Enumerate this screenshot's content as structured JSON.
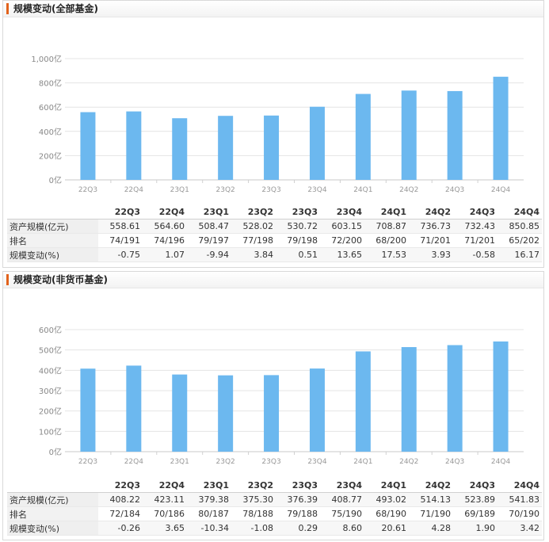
{
  "panels": [
    {
      "title": "规模变动(全部基金)",
      "table": {
        "columns": [
          "22Q3",
          "22Q4",
          "23Q1",
          "23Q2",
          "23Q3",
          "23Q4",
          "24Q1",
          "24Q2",
          "24Q3",
          "24Q4"
        ],
        "rows": [
          {
            "label": "资产规模(亿元)",
            "values": [
              "558.61",
              "564.60",
              "508.47",
              "528.02",
              "530.72",
              "603.15",
              "708.87",
              "736.73",
              "732.43",
              "850.85"
            ]
          },
          {
            "label": "排名",
            "values": [
              "74/191",
              "74/196",
              "79/197",
              "77/198",
              "79/198",
              "72/200",
              "68/200",
              "71/201",
              "71/201",
              "65/202"
            ]
          },
          {
            "label": "规模变动(%)",
            "values": [
              "-0.75",
              "1.07",
              "-9.94",
              "3.84",
              "0.51",
              "13.65",
              "17.53",
              "3.93",
              "-0.58",
              "16.17"
            ]
          }
        ]
      }
    },
    {
      "title": "规模变动(非货币基金)",
      "table": {
        "columns": [
          "22Q3",
          "22Q4",
          "23Q1",
          "23Q2",
          "23Q3",
          "23Q4",
          "24Q1",
          "24Q2",
          "24Q3",
          "24Q4"
        ],
        "rows": [
          {
            "label": "资产规模(亿元)",
            "values": [
              "408.22",
              "423.11",
              "379.38",
              "375.30",
              "376.39",
              "408.77",
              "493.02",
              "514.13",
              "523.89",
              "541.83"
            ]
          },
          {
            "label": "排名",
            "values": [
              "72/184",
              "70/186",
              "80/187",
              "78/188",
              "79/188",
              "75/190",
              "68/190",
              "71/190",
              "69/189",
              "70/190"
            ]
          },
          {
            "label": "规模变动(%)",
            "values": [
              "-0.26",
              "3.65",
              "-10.34",
              "-1.08",
              "0.29",
              "8.60",
              "20.61",
              "4.28",
              "1.90",
              "3.42"
            ]
          }
        ]
      }
    }
  ],
  "chart_data": [
    {
      "type": "bar",
      "categories": [
        "22Q3",
        "22Q4",
        "23Q1",
        "23Q2",
        "23Q3",
        "23Q4",
        "24Q1",
        "24Q2",
        "24Q3",
        "24Q4"
      ],
      "values": [
        558.61,
        564.6,
        508.47,
        528.02,
        530.72,
        603.15,
        708.87,
        736.73,
        732.43,
        850.85
      ],
      "ylim": [
        0,
        1000
      ],
      "yticks": [
        0,
        200,
        400,
        600,
        800,
        1000
      ],
      "ytick_labels": [
        "0亿",
        "200亿",
        "400亿",
        "600亿",
        "800亿",
        "1,000亿"
      ],
      "grid": true,
      "bar_color": "#6cb8ef"
    },
    {
      "type": "bar",
      "categories": [
        "22Q3",
        "22Q4",
        "23Q1",
        "23Q2",
        "23Q3",
        "23Q4",
        "24Q1",
        "24Q2",
        "24Q3",
        "24Q4"
      ],
      "values": [
        408.22,
        423.11,
        379.38,
        375.3,
        376.39,
        408.77,
        493.02,
        514.13,
        523.89,
        541.83
      ],
      "ylim": [
        0,
        600
      ],
      "yticks": [
        0,
        100,
        200,
        300,
        400,
        500,
        600
      ],
      "ytick_labels": [
        "0亿",
        "100亿",
        "200亿",
        "300亿",
        "400亿",
        "500亿",
        "600亿"
      ],
      "grid": true,
      "bar_color": "#6cb8ef"
    }
  ]
}
